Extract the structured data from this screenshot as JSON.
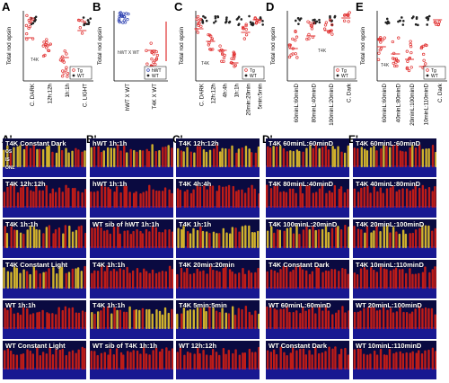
{
  "panels": {
    "A": {
      "letter": "A",
      "ylabel": "Total rod opsin",
      "categories": [
        "C. DARK",
        "12h:12h",
        "1h:1h",
        "C. LIGHT"
      ],
      "legend": [
        "Tg",
        "WT"
      ],
      "annotation": "T4K"
    },
    "B": {
      "letter": "B",
      "ylabel": "Total rod opsin",
      "categories": [
        "hWT X WT",
        "T4K X WT"
      ],
      "legend": [
        "hWT",
        "WT"
      ],
      "annotation": "hWT X WT"
    },
    "C": {
      "letter": "C",
      "ylabel": "Total rod opsin",
      "categories": [
        "C. DARK",
        "12h:12h",
        "4h:4h",
        "1h:1h",
        "20min:20min",
        "5min:5min"
      ],
      "legend": [
        "Tg",
        "WT"
      ],
      "annotation": "T4K"
    },
    "D": {
      "letter": "D",
      "ylabel": "Total rod opsin",
      "categories": [
        "60minL:60minD",
        "80minL:40minD",
        "100minL:20minD",
        "C. Dark"
      ],
      "legend": [
        "Tg",
        "WT"
      ],
      "annotation": "T4K"
    },
    "E": {
      "letter": "E",
      "ylabel": "Total rod opsin",
      "categories": [
        "60minL:60minD",
        "40minL:80minD",
        "20minL:100minD",
        "10minL:110minD",
        "C. Dark"
      ],
      "legend": [
        "Tg",
        "WT"
      ],
      "annotation": "T4K"
    }
  },
  "rows": {
    "A_prime": "A'",
    "B_prime": "B'",
    "C_prime": "C'",
    "D_prime": "D'",
    "E_prime": "E'"
  },
  "columns": [
    {
      "key": "A_prime",
      "tiles": [
        "T4K Constant Dark",
        "T4K 12h:12h",
        "T4K 1h:1h",
        "T4K Constant Light",
        "WT 1h:1h",
        "WT Constant Light"
      ]
    },
    {
      "key": "B_prime",
      "tiles": [
        "hWT 1h:1h",
        "hWT 1h:1h",
        "WT sib of hWT 1h:1h",
        "T4K 1h:1h",
        "T4K 1h:1h",
        "WT sib of T4K 1h:1h"
      ]
    },
    {
      "key": "C_prime",
      "tiles": [
        "T4K 12h:12h",
        "T4K 4h:4h",
        "T4K 1h:1h",
        "T4K 20min:20min",
        "T4K 5min:5min",
        "WT 12h:12h"
      ]
    },
    {
      "key": "D_prime",
      "tiles": [
        "T4K 60minL:60minD",
        "T4K 80minL:40minD",
        "T4K 100minL:20minD",
        "T4K Constant Dark",
        "WT 60minL:60minD",
        "WT Constant Dark"
      ]
    },
    {
      "key": "E_prime",
      "tiles": [
        "T4K 60minL:60minD",
        "T4K 40minL:80minD",
        "T4K 20minL:100minD",
        "T4K 10minL:110minD",
        "WT 20minL:100minD",
        "WT 10minL:110minD"
      ]
    }
  ],
  "layer_labels": [
    "OS",
    "IS",
    "ONL"
  ],
  "colors": {
    "tg_series": "#e03030",
    "wt_series": "#222222",
    "hwt_series": "#2b3fb0",
    "mean_bar": "#e03030",
    "retina_red": "#d21e14",
    "retina_yellow": "#e6c32a",
    "retina_blue": "#1a1a9a",
    "tile_bg": "#0a0a40"
  }
}
